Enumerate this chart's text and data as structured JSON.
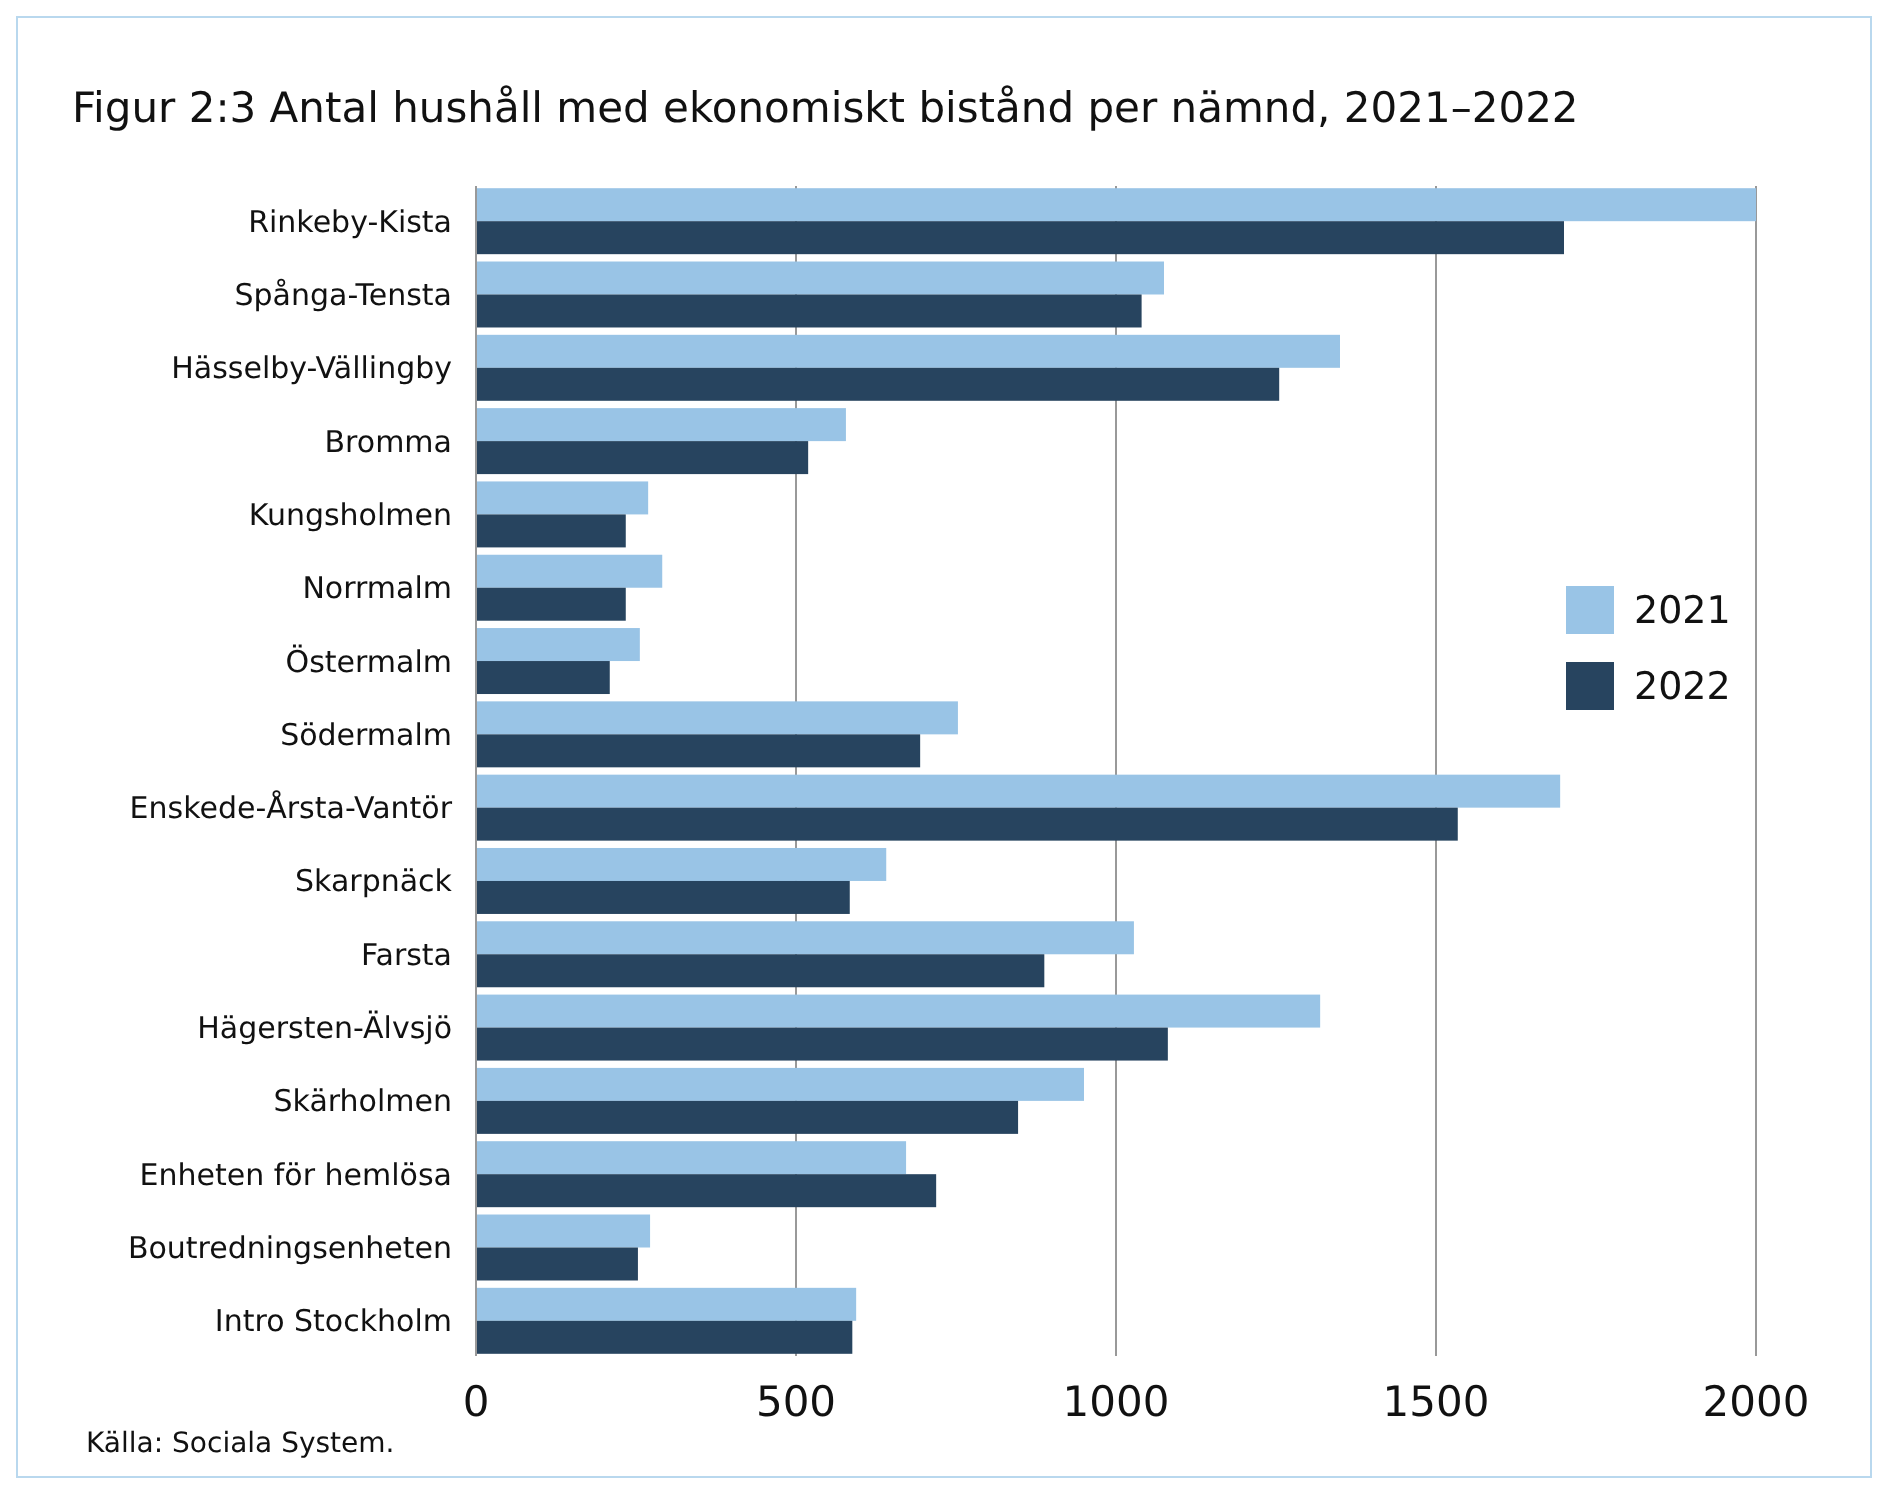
{
  "chart_data": {
    "type": "bar",
    "orientation": "horizontal",
    "title": "Figur 2:3 Antal hushåll med ekonomiskt bistånd per nämnd, 2021–2022",
    "categories": [
      "Rinkeby-Kista",
      "Spånga-Tensta",
      "Hässelby-Vällingby",
      "Bromma",
      "Kungsholmen",
      "Norrmalm",
      "Östermalm",
      "Södermalm",
      "Enskede-Årsta-Vantör",
      "Skarpnäck",
      "Farsta",
      "Hägersten-Älvsjö",
      "Skärholmen",
      "Enheten för hemlösa",
      "Boutredningsenheten",
      "Intro Stockholm"
    ],
    "series": [
      {
        "name": "2021",
        "color": "#99c4e6",
        "values": [
          2000,
          1075,
          1350,
          578,
          269,
          291,
          256,
          753,
          1694,
          641,
          1028,
          1319,
          950,
          672,
          272,
          594
        ]
      },
      {
        "name": "2022",
        "color": "#27445f",
        "values": [
          1700,
          1040,
          1255,
          519,
          234,
          234,
          209,
          694,
          1534,
          584,
          888,
          1081,
          847,
          719,
          253,
          588
        ]
      }
    ],
    "xlim": [
      0,
      2000
    ],
    "xticks": [
      0,
      500,
      1000,
      1500,
      2000
    ],
    "grid": "x",
    "legend": "right",
    "annotations": [
      "Källa: Sociala System."
    ]
  }
}
